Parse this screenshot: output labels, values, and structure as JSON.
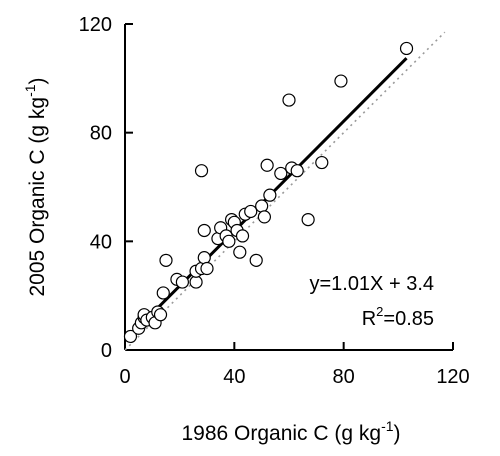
{
  "chart_data": {
    "type": "scatter",
    "title": "",
    "xlabel": "1986 Organic C (g kg",
    "xlabel_exp": "-1",
    "xlabel_close": ")",
    "ylabel": "2005 Organic C (g kg",
    "ylabel_exp": "-1",
    "ylabel_close": ")",
    "xlim": [
      0,
      120
    ],
    "ylim": [
      0,
      120
    ],
    "xticks": [
      0,
      40,
      80,
      120
    ],
    "yticks": [
      0,
      40,
      80,
      120
    ],
    "xtick_labels": [
      "0",
      "40",
      "80",
      "120"
    ],
    "ytick_labels": [
      "0",
      "40",
      "80",
      "120"
    ],
    "grid": false,
    "equation": "y=1.01X + 3.4",
    "r2_prefix": "R",
    "r2_exp": "2",
    "r2_suffix": "=0.85",
    "fit_line": {
      "slope": 1.01,
      "intercept": 3.4,
      "x_range": [
        2,
        103
      ]
    },
    "reference_line": {
      "type": "1:1",
      "style": "dotted",
      "x_range": [
        0,
        120
      ]
    },
    "points": [
      [
        2,
        5
      ],
      [
        5,
        8
      ],
      [
        6,
        10
      ],
      [
        7,
        12
      ],
      [
        7,
        13
      ],
      [
        8,
        11
      ],
      [
        10,
        12
      ],
      [
        11,
        10
      ],
      [
        12,
        14
      ],
      [
        13,
        13
      ],
      [
        14,
        21
      ],
      [
        15,
        33
      ],
      [
        19,
        26
      ],
      [
        21,
        25
      ],
      [
        26,
        25
      ],
      [
        26,
        29
      ],
      [
        28,
        30
      ],
      [
        29,
        34
      ],
      [
        28,
        66
      ],
      [
        29,
        44
      ],
      [
        30,
        30
      ],
      [
        34,
        41
      ],
      [
        35,
        45
      ],
      [
        37,
        42
      ],
      [
        38,
        40
      ],
      [
        39,
        48
      ],
      [
        40,
        47
      ],
      [
        41,
        44
      ],
      [
        42,
        36
      ],
      [
        43,
        42
      ],
      [
        44,
        50
      ],
      [
        46,
        51
      ],
      [
        48,
        33
      ],
      [
        50,
        53
      ],
      [
        51,
        49
      ],
      [
        52,
        68
      ],
      [
        53,
        57
      ],
      [
        57,
        65
      ],
      [
        60,
        92
      ],
      [
        61,
        67
      ],
      [
        63,
        66
      ],
      [
        67,
        48
      ],
      [
        72,
        69
      ],
      [
        79,
        99
      ],
      [
        103,
        111
      ]
    ]
  }
}
